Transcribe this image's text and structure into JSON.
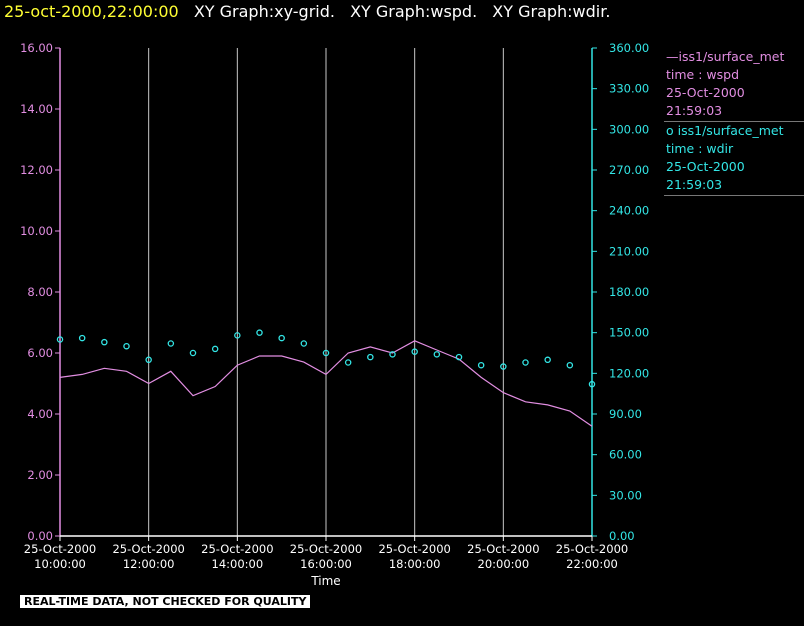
{
  "header": {
    "timestamp": "25-oct-2000,22:00:00",
    "graphs": [
      "XY Graph:xy-grid.",
      "XY Graph:wspd.",
      "XY Graph:wdir."
    ]
  },
  "footer": {
    "quality_note": "REAL-TIME DATA, NOT CHECKED FOR QUALITY"
  },
  "legend": [
    {
      "marker": "—",
      "source": "iss1/surface_met",
      "var": "time : wspd",
      "date": "25-Oct-2000",
      "time": "21:59:03"
    },
    {
      "marker": "o",
      "source": "iss1/surface_met",
      "var": "time : wdir",
      "date": "25-Oct-2000",
      "time": "21:59:03"
    }
  ],
  "colors": {
    "wspd": "#e28ee2",
    "wdir": "#33e6e6",
    "grid": "#c8c8c8"
  },
  "chart_data": {
    "type": "line",
    "xlabel": "Time",
    "x_ticks": [
      {
        "date": "25-Oct-2000",
        "time": "10:00:00"
      },
      {
        "date": "25-Oct-2000",
        "time": "12:00:00"
      },
      {
        "date": "25-Oct-2000",
        "time": "14:00:00"
      },
      {
        "date": "25-Oct-2000",
        "time": "16:00:00"
      },
      {
        "date": "25-Oct-2000",
        "time": "18:00:00"
      },
      {
        "date": "25-Oct-2000",
        "time": "20:00:00"
      },
      {
        "date": "25-Oct-2000",
        "time": "22:00:00"
      }
    ],
    "xlim": [
      "10:00:00",
      "22:00:00"
    ],
    "y_left": {
      "ticks": [
        "0.00",
        "2.00",
        "4.00",
        "6.00",
        "8.00",
        "10.00",
        "12.00",
        "14.00",
        "16.00"
      ],
      "ylim": [
        0,
        16
      ]
    },
    "y_right": {
      "ticks": [
        "0.00",
        "30.00",
        "60.00",
        "90.00",
        "120.00",
        "150.00",
        "180.00",
        "210.00",
        "240.00",
        "270.00",
        "300.00",
        "330.00",
        "360.00"
      ],
      "ylim": [
        0,
        360
      ]
    },
    "grid": "vertical",
    "series": [
      {
        "axis": "left",
        "style": "line",
        "x": [
          "10:00",
          "10:30",
          "11:00",
          "11:30",
          "12:00",
          "12:30",
          "13:00",
          "13:30",
          "14:00",
          "14:30",
          "15:00",
          "15:30",
          "16:00",
          "16:30",
          "17:00",
          "17:30",
          "18:00",
          "18:30",
          "19:00",
          "19:30",
          "20:00",
          "20:30",
          "21:00",
          "21:30",
          "22:00"
        ],
        "values": [
          5.2,
          5.3,
          5.5,
          5.4,
          5.0,
          5.4,
          4.6,
          4.9,
          5.6,
          5.9,
          5.9,
          5.7,
          5.3,
          6.0,
          6.2,
          6.0,
          6.4,
          6.1,
          5.8,
          5.2,
          4.7,
          4.4,
          4.3,
          4.1,
          3.6
        ]
      },
      {
        "axis": "right",
        "style": "markers",
        "x": [
          "10:00",
          "10:30",
          "11:00",
          "11:30",
          "12:00",
          "12:30",
          "13:00",
          "13:30",
          "14:00",
          "14:30",
          "15:00",
          "15:30",
          "16:00",
          "16:30",
          "17:00",
          "17:30",
          "18:00",
          "18:30",
          "19:00",
          "19:30",
          "20:00",
          "20:30",
          "21:00",
          "21:30",
          "22:00"
        ],
        "values": [
          145,
          146,
          143,
          140,
          130,
          142,
          135,
          138,
          148,
          150,
          146,
          142,
          135,
          128,
          132,
          134,
          136,
          134,
          132,
          126,
          125,
          128,
          130,
          126,
          112
        ]
      }
    ]
  }
}
